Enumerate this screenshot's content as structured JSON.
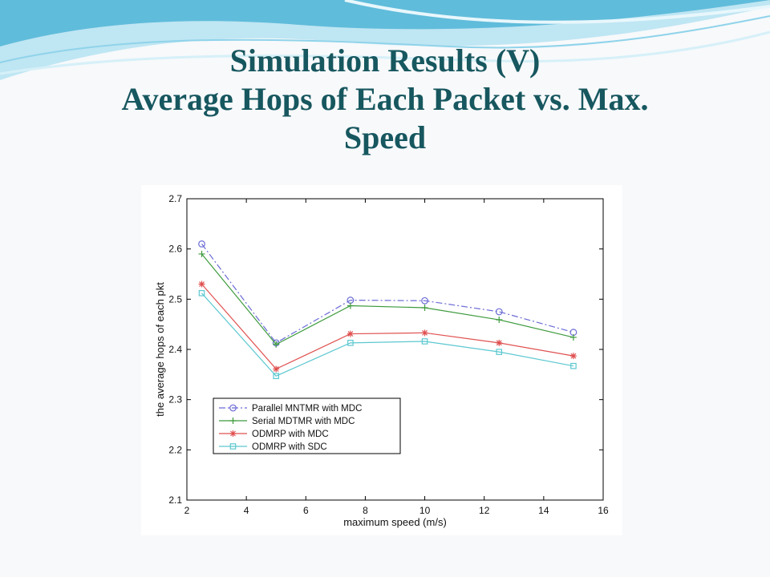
{
  "slide": {
    "title_line1": "Simulation Results (V)",
    "title_line2": "Average Hops of Each Packet vs. Max.",
    "title_line3": "Speed"
  },
  "colors": {
    "title": "#17575f",
    "wave_dark": "#4fb4d6",
    "wave_light": "#bfe6f3"
  },
  "chart_data": {
    "type": "line",
    "title": "",
    "xlabel": "maximum speed (m/s)",
    "ylabel": "the average hops of each pkt",
    "xlim": [
      2,
      16
    ],
    "ylim": [
      2.1,
      2.7
    ],
    "xticks": [
      2,
      4,
      6,
      8,
      10,
      12,
      14,
      16
    ],
    "yticks": [
      2.1,
      2.2,
      2.3,
      2.4,
      2.5,
      2.6,
      2.7
    ],
    "x": [
      2.5,
      5,
      7.5,
      10,
      12.5,
      15
    ],
    "grid": false,
    "legend_position": "bottom-left",
    "series": [
      {
        "name": "Parallel MNTMR with MDC",
        "values": [
          2.61,
          2.413,
          2.498,
          2.497,
          2.475,
          2.434
        ],
        "color": "#6b6bd6",
        "marker": "circle",
        "dash": "dashdot"
      },
      {
        "name": "Serial MDTMR with MDC",
        "values": [
          2.59,
          2.41,
          2.487,
          2.483,
          2.459,
          2.424
        ],
        "color": "#3e9b3e",
        "marker": "plus",
        "dash": "solid"
      },
      {
        "name": "ODMRP with MDC",
        "values": [
          2.53,
          2.361,
          2.431,
          2.433,
          2.413,
          2.387
        ],
        "color": "#e05050",
        "marker": "star",
        "dash": "solid"
      },
      {
        "name": "ODMRP with SDC",
        "values": [
          2.512,
          2.347,
          2.413,
          2.416,
          2.395,
          2.367
        ],
        "color": "#5cc8d0",
        "marker": "square",
        "dash": "solid"
      }
    ]
  }
}
